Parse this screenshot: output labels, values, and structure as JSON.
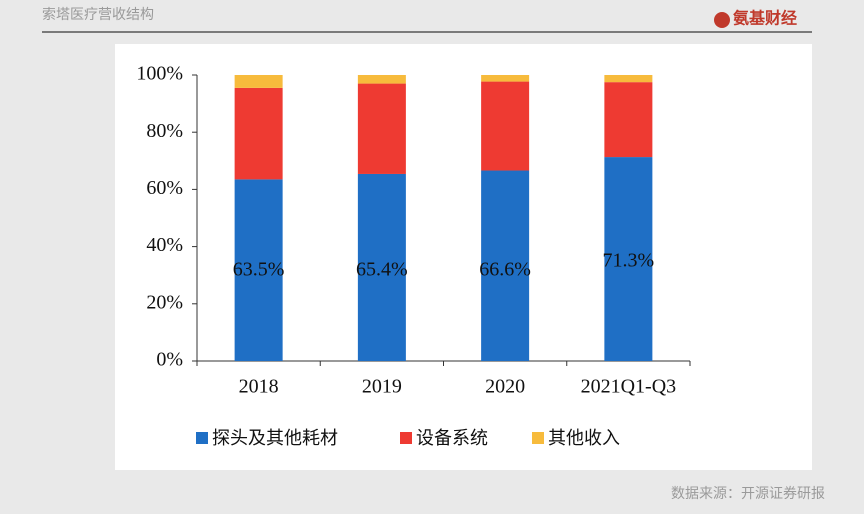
{
  "header": {
    "title": "索塔医疗营收结构",
    "logo": "氨基财经"
  },
  "source": "数据来源：开源证券研报",
  "chart_data": {
    "type": "stacked_bar",
    "categories": [
      "2018",
      "2019",
      "2020",
      "2021Q1-Q3"
    ],
    "series": [
      {
        "name": "探头及其他耗材",
        "color": "#1f6fc5",
        "values": [
          63.5,
          65.4,
          66.6,
          71.3
        ],
        "value_labels": [
          "63.5%",
          "65.4%",
          "66.6%",
          "71.3%"
        ]
      },
      {
        "name": "设备系统",
        "color": "#ee3a32",
        "values": [
          32.0,
          31.6,
          31.1,
          26.2
        ]
      },
      {
        "name": "其他收入",
        "color": "#f7bb3c",
        "values": [
          4.5,
          3.0,
          2.3,
          2.5
        ]
      }
    ],
    "ylim": [
      0,
      100
    ],
    "yticks": [
      {
        "value": 0,
        "label": "0%"
      },
      {
        "value": 20,
        "label": "20%"
      },
      {
        "value": 40,
        "label": "40%"
      },
      {
        "value": 60,
        "label": "60%"
      },
      {
        "value": 80,
        "label": "80%"
      },
      {
        "value": 100,
        "label": "100%"
      }
    ]
  }
}
